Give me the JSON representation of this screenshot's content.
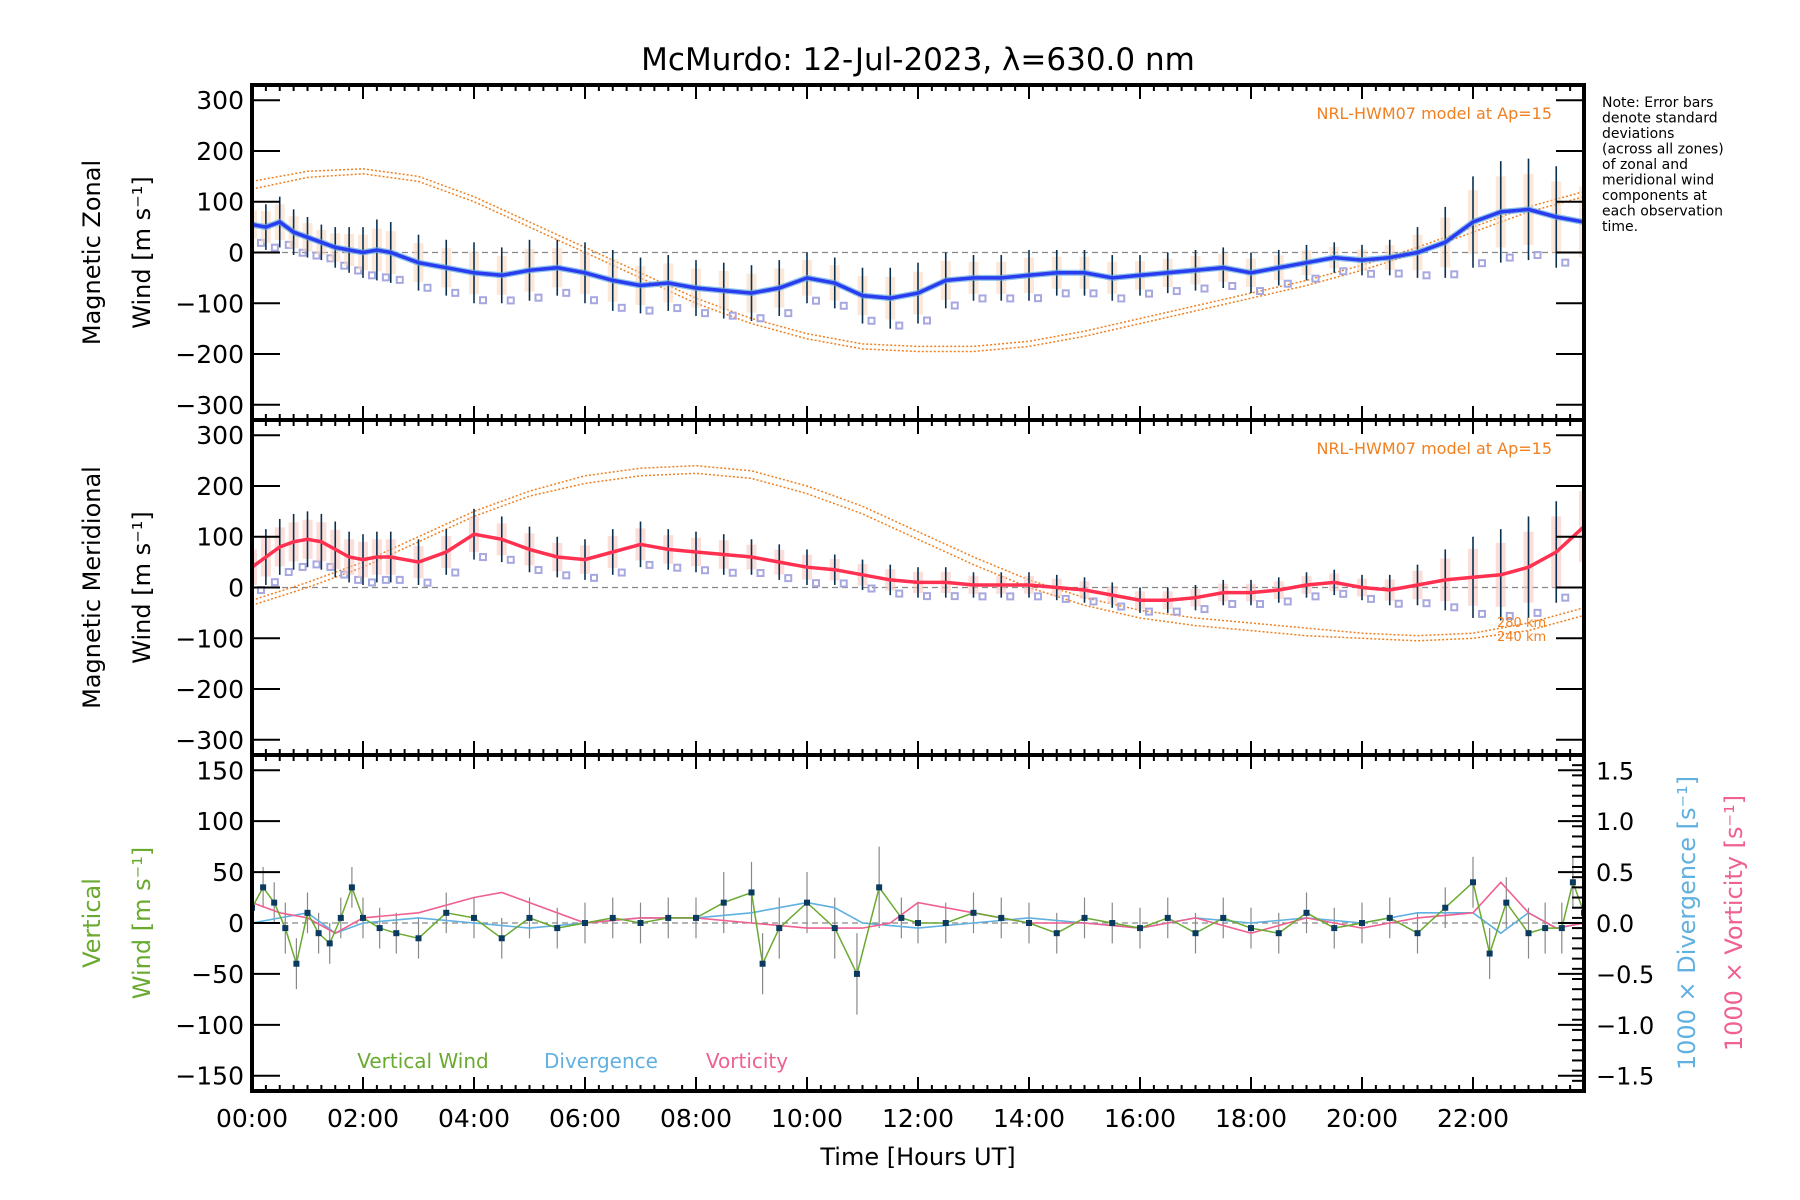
{
  "chart_data": {
    "type": "line",
    "title": "McMurdo: 12-Jul-2023, λ=630.0 nm",
    "xlabel": "Time [Hours UT]",
    "xlim": [
      0,
      24
    ],
    "x_ticks": [
      0,
      2,
      4,
      6,
      8,
      10,
      12,
      14,
      16,
      18,
      20,
      22
    ],
    "x_tick_labels": [
      "00:00",
      "02:00",
      "04:00",
      "06:00",
      "08:00",
      "10:00",
      "12:00",
      "14:00",
      "16:00",
      "18:00",
      "20:00",
      "22:00"
    ],
    "note": [
      "Note: Error bars",
      "denote standard",
      "deviations",
      "(across all zones)",
      "of zonal and",
      "meridional wind",
      "components at",
      "each observation",
      "time."
    ],
    "colors": {
      "zonal": "#2a3cf0",
      "zonal_light": "#5aa7e0",
      "meridional": "#ff3050",
      "model": "#f08020",
      "vertical": "#6aaa30",
      "divergence": "#60b0e0",
      "vorticity": "#f06090",
      "errorbar": "#0a3050",
      "zone_points": "#a8a8e0",
      "vertical_points": "#0a3a60"
    },
    "panels": [
      {
        "name": "zonal",
        "ylabel_line1": "Magnetic Zonal",
        "ylabel_line2": "Wind [m s⁻¹]",
        "ylim": [
          -330,
          330
        ],
        "y_ticks": [
          -300,
          -200,
          -100,
          0,
          100,
          200,
          300
        ],
        "model_label": "NRL-HWM07 model at Ap=15",
        "model_series": [
          {
            "name": "model-upper",
            "x": [
              0,
              1,
              2,
              3,
              4,
              5,
              6,
              7,
              8,
              9,
              10,
              11,
              12,
              13,
              14,
              15,
              16,
              17,
              18,
              19,
              20,
              21,
              22,
              23,
              24
            ],
            "y": [
              140,
              160,
              165,
              150,
              110,
              60,
              10,
              -40,
              -90,
              -130,
              -160,
              -180,
              -185,
              -185,
              -175,
              -155,
              -130,
              -105,
              -80,
              -55,
              -25,
              10,
              50,
              90,
              120
            ]
          },
          {
            "name": "model-lower",
            "x": [
              0,
              1,
              2,
              3,
              4,
              5,
              6,
              7,
              8,
              9,
              10,
              11,
              12,
              13,
              14,
              15,
              16,
              17,
              18,
              19,
              20,
              21,
              22,
              23,
              24
            ],
            "y": [
              125,
              148,
              155,
              140,
              100,
              50,
              0,
              -50,
              -100,
              -140,
              -170,
              -190,
              -195,
              -195,
              -185,
              -165,
              -140,
              -115,
              -90,
              -65,
              -35,
              0,
              40,
              80,
              110
            ]
          }
        ],
        "series": {
          "name": "Zonal wind",
          "x": [
            0,
            0.25,
            0.5,
            0.75,
            1,
            1.25,
            1.5,
            1.75,
            2,
            2.25,
            2.5,
            3,
            3.5,
            4,
            4.5,
            5,
            5.5,
            6,
            6.5,
            7,
            7.5,
            8,
            8.5,
            9,
            9.5,
            10,
            10.5,
            11,
            11.5,
            12,
            12.5,
            13,
            13.5,
            14,
            14.5,
            15,
            15.5,
            16,
            16.5,
            17,
            17.5,
            18,
            18.5,
            19,
            19.5,
            20,
            20.5,
            21,
            21.5,
            22,
            22.5,
            23,
            23.5,
            24
          ],
          "y": [
            55,
            50,
            60,
            40,
            30,
            20,
            10,
            5,
            0,
            5,
            0,
            -20,
            -30,
            -40,
            -45,
            -35,
            -30,
            -40,
            -55,
            -65,
            -60,
            -70,
            -75,
            -80,
            -70,
            -50,
            -60,
            -85,
            -90,
            -80,
            -55,
            -50,
            -50,
            -45,
            -40,
            -40,
            -50,
            -45,
            -40,
            -35,
            -30,
            -40,
            -30,
            -20,
            -10,
            -15,
            -10,
            0,
            20,
            60,
            80,
            85,
            70,
            60
          ],
          "err": [
            40,
            45,
            50,
            45,
            40,
            35,
            40,
            45,
            50,
            60,
            60,
            55,
            55,
            60,
            55,
            60,
            55,
            60,
            60,
            55,
            55,
            55,
            55,
            55,
            55,
            50,
            50,
            55,
            60,
            60,
            55,
            45,
            45,
            50,
            45,
            45,
            45,
            40,
            40,
            40,
            40,
            40,
            35,
            35,
            30,
            30,
            35,
            50,
            70,
            90,
            100,
            100,
            100,
            100
          ]
        }
      },
      {
        "name": "meridional",
        "ylabel_line1": "Magnetic Meridional",
        "ylabel_line2": "Wind [m s⁻¹]",
        "ylim": [
          -330,
          330
        ],
        "y_ticks": [
          -300,
          -200,
          -100,
          0,
          100,
          200,
          300
        ],
        "model_label": "NRL-HWM07 model at Ap=15",
        "model_height_labels": [
          "280 km",
          "240 km"
        ],
        "model_series": [
          {
            "name": "model-280km",
            "x": [
              0,
              1,
              2,
              3,
              4,
              5,
              6,
              7,
              8,
              9,
              10,
              11,
              12,
              13,
              14,
              15,
              16,
              17,
              18,
              19,
              20,
              21,
              22,
              23,
              24
            ],
            "y": [
              -25,
              10,
              50,
              100,
              150,
              190,
              220,
              235,
              240,
              230,
              200,
              160,
              110,
              60,
              15,
              -20,
              -45,
              -60,
              -70,
              -80,
              -90,
              -95,
              -90,
              -70,
              -40
            ]
          },
          {
            "name": "model-240km",
            "x": [
              0,
              1,
              2,
              3,
              4,
              5,
              6,
              7,
              8,
              9,
              10,
              11,
              12,
              13,
              14,
              15,
              16,
              17,
              18,
              19,
              20,
              21,
              22,
              23,
              24
            ],
            "y": [
              -35,
              0,
              40,
              90,
              140,
              180,
              205,
              220,
              225,
              215,
              185,
              145,
              95,
              45,
              0,
              -35,
              -60,
              -75,
              -85,
              -95,
              -100,
              -105,
              -100,
              -85,
              -55
            ]
          }
        ],
        "series": {
          "name": "Meridional wind",
          "x": [
            0,
            0.25,
            0.5,
            0.75,
            1,
            1.25,
            1.5,
            1.75,
            2,
            2.25,
            2.5,
            3,
            3.5,
            4,
            4.5,
            5,
            5.5,
            6,
            6.5,
            7,
            7.5,
            8,
            8.5,
            9,
            9.5,
            10,
            10.5,
            11,
            11.5,
            12,
            12.5,
            13,
            13.5,
            14,
            14.5,
            15,
            15.5,
            16,
            16.5,
            17,
            17.5,
            18,
            18.5,
            19,
            19.5,
            20,
            20.5,
            21,
            21.5,
            22,
            22.5,
            23,
            23.5,
            24
          ],
          "y": [
            40,
            60,
            80,
            90,
            95,
            90,
            75,
            60,
            55,
            60,
            60,
            50,
            70,
            105,
            95,
            75,
            60,
            55,
            70,
            85,
            75,
            70,
            65,
            60,
            50,
            40,
            35,
            25,
            15,
            10,
            10,
            5,
            5,
            5,
            0,
            -5,
            -15,
            -25,
            -25,
            -20,
            -10,
            -10,
            -5,
            5,
            10,
            0,
            -5,
            5,
            15,
            20,
            25,
            40,
            70,
            120
          ],
          "err": [
            50,
            55,
            55,
            55,
            55,
            55,
            55,
            50,
            50,
            50,
            50,
            45,
            45,
            50,
            45,
            45,
            40,
            40,
            45,
            45,
            40,
            40,
            40,
            35,
            35,
            35,
            30,
            30,
            30,
            30,
            30,
            25,
            25,
            25,
            25,
            25,
            25,
            25,
            25,
            25,
            25,
            25,
            25,
            25,
            25,
            25,
            30,
            40,
            60,
            80,
            90,
            100,
            100,
            100
          ]
        }
      },
      {
        "name": "vertical",
        "ylabel_line1": "Vertical",
        "ylabel_line2": "Wind [m s⁻¹]",
        "ylim": [
          -165,
          165
        ],
        "y_ticks": [
          -150,
          -100,
          -50,
          0,
          50,
          100,
          150
        ],
        "y2_label": "1000 × Divergence [s⁻¹]",
        "y3_label": "1000 × Vorticity [s⁻¹]",
        "y2lim": [
          -1.65,
          1.65
        ],
        "y2_ticks": [
          -1.5,
          -1.0,
          -0.5,
          0.0,
          0.5,
          1.0,
          1.5
        ],
        "y2_tick_labels": [
          "−1.5",
          "−1.0",
          "−0.5",
          "0.0",
          "0.5",
          "1.0",
          "1.5"
        ],
        "legend": [
          "Vertical Wind",
          "Divergence",
          "Vorticity"
        ],
        "vertical_wind": {
          "x": [
            0,
            0.2,
            0.4,
            0.6,
            0.8,
            1,
            1.2,
            1.4,
            1.6,
            1.8,
            2,
            2.3,
            2.6,
            3,
            3.5,
            4,
            4.5,
            5,
            5.5,
            6,
            6.5,
            7,
            7.5,
            8,
            8.5,
            9,
            9.2,
            9.5,
            10,
            10.5,
            10.9,
            11.3,
            11.7,
            12,
            12.5,
            13,
            13.5,
            14,
            14.5,
            15,
            15.5,
            16,
            16.5,
            17,
            17.5,
            18,
            18.5,
            19,
            19.5,
            20,
            20.5,
            21,
            21.5,
            22,
            22.3,
            22.6,
            23,
            23.3,
            23.6,
            23.8,
            24
          ],
          "y": [
            15,
            35,
            20,
            -5,
            -40,
            10,
            -10,
            -20,
            5,
            35,
            5,
            -5,
            -10,
            -15,
            10,
            5,
            -15,
            5,
            -5,
            0,
            5,
            0,
            5,
            5,
            20,
            30,
            -40,
            -5,
            20,
            -5,
            -50,
            35,
            5,
            0,
            0,
            10,
            5,
            0,
            -10,
            5,
            0,
            -5,
            5,
            -10,
            5,
            -5,
            -10,
            10,
            -5,
            0,
            5,
            -10,
            15,
            40,
            -30,
            20,
            -10,
            -5,
            -5,
            40,
            10
          ],
          "err": [
            20,
            20,
            20,
            25,
            25,
            20,
            20,
            20,
            20,
            20,
            20,
            20,
            20,
            20,
            20,
            20,
            20,
            20,
            20,
            20,
            20,
            20,
            20,
            20,
            30,
            30,
            30,
            30,
            30,
            30,
            40,
            40,
            20,
            20,
            20,
            20,
            20,
            20,
            20,
            20,
            20,
            20,
            20,
            20,
            20,
            20,
            20,
            20,
            20,
            20,
            20,
            20,
            20,
            25,
            25,
            25,
            25,
            25,
            25,
            25,
            25
          ]
        },
        "divergence": {
          "x": [
            0,
            0.5,
            1,
            1.5,
            2,
            3,
            4,
            5,
            6,
            7,
            8,
            9,
            10,
            10.5,
            11,
            12,
            13,
            14,
            15,
            16,
            17,
            18,
            19,
            20,
            21,
            22,
            22.5,
            23,
            23.5,
            24
          ],
          "y": [
            0.0,
            0.05,
            0.1,
            -0.1,
            0.0,
            0.05,
            0.0,
            -0.05,
            0.0,
            0.05,
            0.05,
            0.1,
            0.2,
            0.15,
            0.0,
            -0.05,
            0.0,
            0.05,
            0.0,
            -0.05,
            0.05,
            0.0,
            0.05,
            0.0,
            0.1,
            0.1,
            -0.1,
            0.1,
            -0.05,
            0.0
          ]
        },
        "vorticity": {
          "x": [
            0,
            0.5,
            1,
            1.5,
            2,
            3,
            4,
            4.5,
            5,
            6,
            7,
            8,
            9,
            10,
            11,
            11.5,
            12,
            13,
            14,
            15,
            16,
            17,
            18,
            19,
            20,
            21,
            22,
            22.5,
            23,
            23.5,
            24
          ],
          "y": [
            0.2,
            0.1,
            0.05,
            -0.1,
            0.05,
            0.1,
            0.25,
            0.3,
            0.2,
            0.0,
            0.05,
            0.05,
            0.0,
            -0.05,
            -0.05,
            0.0,
            0.2,
            0.1,
            0.0,
            0.0,
            -0.05,
            0.05,
            -0.1,
            0.05,
            -0.05,
            0.05,
            0.1,
            0.4,
            0.1,
            -0.05,
            0.0
          ]
        }
      }
    ]
  }
}
